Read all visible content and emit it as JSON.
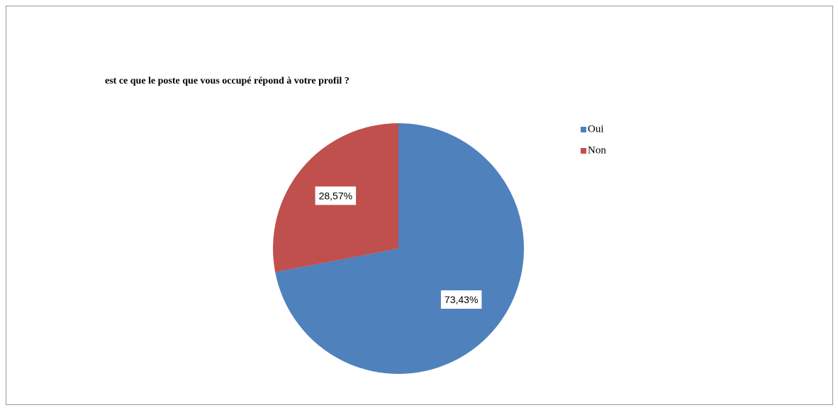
{
  "chart_data": {
    "type": "pie",
    "title": "est ce que le poste que vous occupé répond à votre profil ?",
    "categories": [
      "Oui",
      "Non"
    ],
    "values": [
      73.43,
      28.57
    ],
    "value_labels": [
      "73,43%",
      "28,57%"
    ],
    "colors": [
      "#4f81bd",
      "#c0504d"
    ]
  }
}
